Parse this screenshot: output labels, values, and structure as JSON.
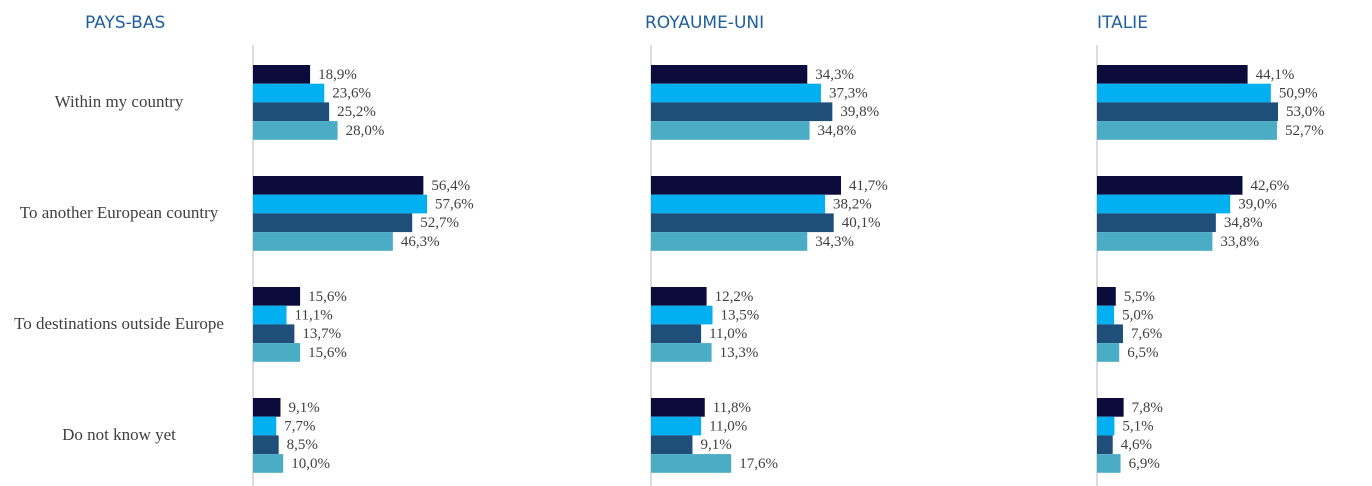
{
  "chart_data": [
    {
      "type": "bar",
      "title": "PAYS-BAS",
      "categories": [
        "Within my country",
        "To another European country",
        "To destinations outside Europe",
        "Do not know yet"
      ],
      "series": [
        {
          "color": "#0c0c3c",
          "values": [
            18.9,
            56.4,
            15.6,
            9.1
          ],
          "value_labels": [
            "18,9%",
            "56,4%",
            "15,6%",
            "9,1%"
          ]
        },
        {
          "color": "#00b0f0",
          "values": [
            23.6,
            57.6,
            11.1,
            7.7
          ],
          "value_labels": [
            "23,6%",
            "57,6%",
            "11,1%",
            "7,7%"
          ]
        },
        {
          "color": "#1f4e79",
          "values": [
            25.2,
            52.7,
            13.7,
            8.5
          ],
          "value_labels": [
            "25,2%",
            "52,7%",
            "13,7%",
            "8,5%"
          ]
        },
        {
          "color": "#4bacc6",
          "values": [
            28.0,
            46.3,
            15.6,
            10.0
          ],
          "value_labels": [
            "28,0%",
            "46,3%",
            "15,6%",
            "10,0%"
          ]
        }
      ]
    },
    {
      "type": "bar",
      "title": "ROYAUME-UNI",
      "series": [
        {
          "color": "#0c0c3c",
          "values": [
            34.3,
            41.7,
            12.2,
            11.8
          ],
          "value_labels": [
            "34,3%",
            "41,7%",
            "12,2%",
            "11,8%"
          ]
        },
        {
          "color": "#00b0f0",
          "values": [
            37.3,
            38.2,
            13.5,
            11.0
          ],
          "value_labels": [
            "37,3%",
            "38,2%",
            "13,5%",
            "11,0%"
          ]
        },
        {
          "color": "#1f4e79",
          "values": [
            39.8,
            40.1,
            11.0,
            9.1
          ],
          "value_labels": [
            "39,8%",
            "40,1%",
            "11,0%",
            "9,1%"
          ]
        },
        {
          "color": "#4bacc6",
          "values": [
            34.8,
            34.3,
            13.3,
            17.6
          ],
          "value_labels": [
            "34,8%",
            "34,3%",
            "13,3%",
            "17,6%"
          ]
        }
      ]
    },
    {
      "type": "bar",
      "title": "ITALIE",
      "series": [
        {
          "color": "#0c0c3c",
          "values": [
            44.1,
            42.6,
            5.5,
            7.8
          ],
          "value_labels": [
            "44,1%",
            "42,6%",
            "5,5%",
            "7,8%"
          ]
        },
        {
          "color": "#00b0f0",
          "values": [
            50.9,
            39.0,
            5.0,
            5.1
          ],
          "value_labels": [
            "50,9%",
            "39,0%",
            "5,0%",
            "5,1%"
          ]
        },
        {
          "color": "#1f4e79",
          "values": [
            53.0,
            34.8,
            7.6,
            4.6
          ],
          "value_labels": [
            "53,0%",
            "34,8%",
            "7,6%",
            "4,6%"
          ]
        },
        {
          "color": "#4bacc6",
          "values": [
            52.7,
            33.8,
            6.5,
            6.9
          ],
          "value_labels": [
            "52,7%",
            "33,8%",
            "6,5%",
            "6,9%"
          ]
        }
      ]
    }
  ]
}
